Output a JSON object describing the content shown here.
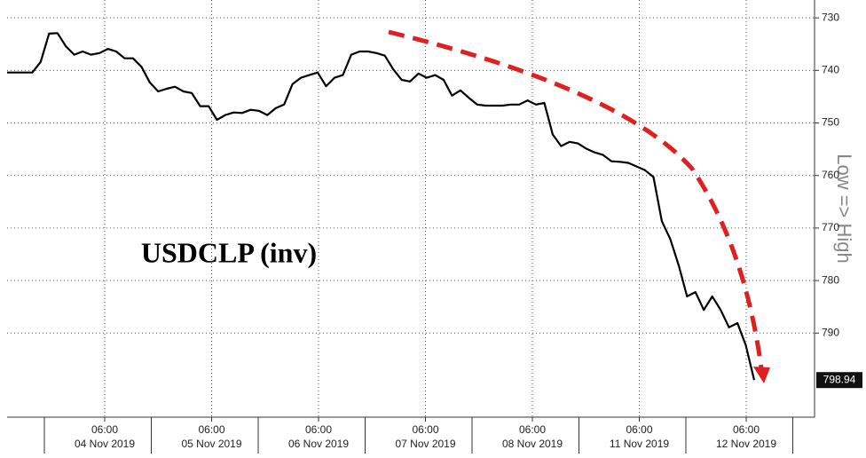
{
  "chart_data": {
    "type": "line",
    "annotation": "USDCLP (inv)",
    "y_axis_label": "Low => High",
    "series": [
      {
        "color": "#000000",
        "values": [
          740.4,
          740.4,
          740.4,
          740.4,
          738.4,
          733.0,
          732.9,
          735.4,
          737.0,
          736.4,
          737.0,
          736.7,
          735.9,
          736.4,
          737.7,
          737.7,
          739.3,
          742.3,
          744.0,
          743.5,
          743.1,
          744.0,
          744.3,
          746.8,
          746.8,
          749.4,
          748.5,
          748.0,
          748.1,
          747.5,
          747.7,
          748.5,
          747.2,
          746.5,
          742.6,
          741.4,
          740.9,
          740.4,
          743.0,
          741.4,
          740.9,
          737.0,
          736.4,
          736.4,
          736.7,
          737.2,
          739.8,
          741.8,
          742.1,
          740.6,
          741.4,
          740.9,
          741.8,
          744.8,
          743.8,
          745.2,
          746.5,
          746.7,
          746.7,
          746.7,
          746.5,
          746.5,
          745.7,
          746.5,
          746.2,
          752.2,
          754.4,
          753.6,
          753.9,
          754.9,
          755.6,
          756.1,
          757.3,
          757.4,
          757.6,
          758.3,
          759.0,
          760.3,
          768.7,
          772.1,
          777.1,
          783.0,
          782.2,
          785.6,
          783.0,
          785.6,
          788.9,
          788.1,
          792.3,
          798.94
        ]
      }
    ],
    "x_axis_labels": [
      {
        "time": "06:00",
        "date": "04 Nov 2019"
      },
      {
        "time": "06:00",
        "date": "05 Nov 2019"
      },
      {
        "time": "06:00",
        "date": "06 Nov 2019"
      },
      {
        "time": "06:00",
        "date": "07 Nov 2019"
      },
      {
        "time": "06:00",
        "date": "08 Nov 2019"
      },
      {
        "time": "06:00",
        "date": "11 Nov 2019"
      },
      {
        "time": "06:00",
        "date": "12 Nov 2019"
      }
    ],
    "ylim": [
      726.6,
      806
    ],
    "y_inverted": true,
    "yticks": [
      730,
      740,
      750,
      760,
      770,
      780,
      790
    ],
    "grid": true
  }
}
